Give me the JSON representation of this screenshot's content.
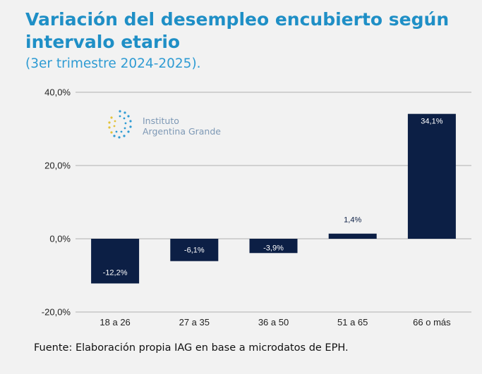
{
  "title": "Variación del desempleo encubierto según intervalo etario",
  "subtitle": "(3er trimestre 2024-2025).",
  "source": "Fuente: Elaboración propia IAG en base a microdatos de EPH.",
  "logo": {
    "line1": "Instituto",
    "line2": "Argentina Grande"
  },
  "colors": {
    "bar": "#0c1f45",
    "title": "#1f8fc6",
    "grid": "#b0b0b0"
  },
  "chart_data": {
    "type": "bar",
    "categories": [
      "18 a 26",
      "27 a 35",
      "36 a 50",
      "51 a 65",
      "66 o más"
    ],
    "values": [
      -12.2,
      -6.1,
      -3.9,
      1.4,
      34.1
    ],
    "data_labels": [
      "-12,2%",
      "-6,1%",
      "-3,9%",
      "1,4%",
      "34,1%"
    ],
    "yticks": [
      40,
      20,
      0,
      -20
    ],
    "ytick_labels": [
      "40,0%",
      "20,0%",
      "0,0%",
      "-20,0%"
    ],
    "ylim": [
      -20,
      40
    ],
    "grid": true
  }
}
